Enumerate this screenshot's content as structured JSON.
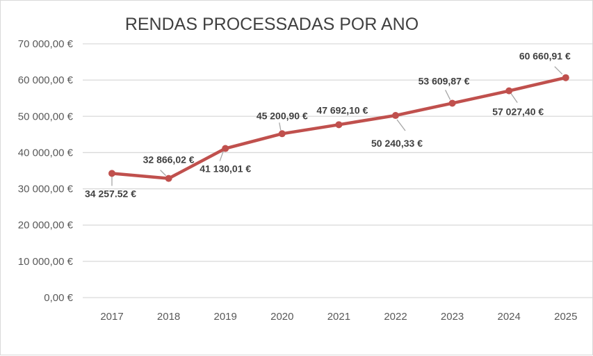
{
  "chart_data": {
    "type": "line",
    "title": "RENDAS PROCESSADAS POR ANO",
    "xlabel": "",
    "ylabel": "",
    "categories": [
      "2017",
      "2018",
      "2019",
      "2020",
      "2021",
      "2022",
      "2023",
      "2024",
      "2025"
    ],
    "series": [
      {
        "values": [
          34257.52,
          32866.02,
          41130.01,
          45200.9,
          47692.1,
          50240.33,
          53609.87,
          57027.4,
          60660.91
        ],
        "data_labels": [
          "34 257.52 €",
          "32 866,02 €",
          "41 130,01 €",
          "45 200,90 €",
          "47 692,10 €",
          "50 240,33 €",
          "53 609,87 €",
          "57 027,40 €",
          "60 660,91 €"
        ],
        "color": "#c0504d"
      }
    ],
    "ylim": [
      0,
      70000
    ],
    "yticks": [
      0,
      10000,
      20000,
      30000,
      40000,
      50000,
      60000,
      70000
    ],
    "ytick_labels": [
      "0,00 €",
      "10 000,00 €",
      "20 000,00 €",
      "30 000,00 €",
      "40 000,00 €",
      "50 000,00 €",
      "60 000,00 €",
      "70 000,00 €"
    ],
    "grid": true,
    "gridline_color": "#d9d9d9",
    "legend": "none"
  }
}
